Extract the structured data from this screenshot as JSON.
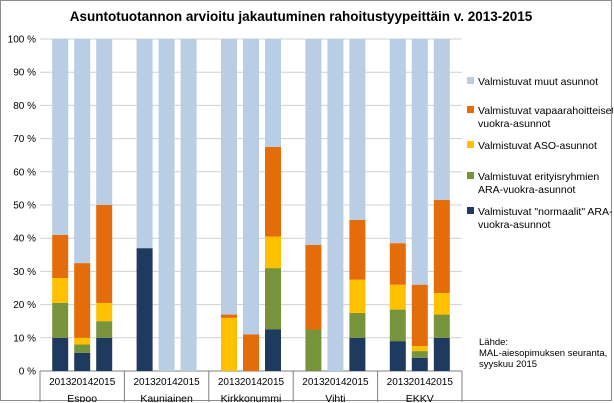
{
  "chart_data": {
    "type": "bar",
    "stacked": true,
    "title": "Asuntotuotannon arvioitu jakautuminen rahoitustyypeittäin  v. 2013-2015",
    "ylim": [
      0,
      100
    ],
    "yticks": [
      "0 %",
      "10 %",
      "20 %",
      "30 %",
      "40 %",
      "50 %",
      "60 %",
      "70 %",
      "80 %",
      "90 %",
      "100 %"
    ],
    "grid": true,
    "legend_position": "right",
    "groups": [
      {
        "name": "Espoo",
        "years": [
          "2013",
          "2014",
          "2015"
        ]
      },
      {
        "name": "Kauniainen",
        "years": [
          "2013",
          "2014",
          "2015"
        ]
      },
      {
        "name": "Kirkkonummi",
        "years": [
          "2013",
          "2014",
          "2015"
        ]
      },
      {
        "name": "Vihti",
        "years": [
          "2013",
          "2014",
          "2015"
        ]
      },
      {
        "name": "EKKV",
        "years": [
          "2013",
          "2014",
          "2015"
        ]
      }
    ],
    "series": [
      {
        "name": "Valmistuvat \"normaalit\" ARA-vuokra-asunnot",
        "label_lines": [
          "Valmistuvat \"normaalit\" ARA-",
          "vuokra-asunnot"
        ],
        "color": "#1f3a5f",
        "values": [
          10,
          5.5,
          10,
          37,
          0,
          0,
          0,
          0,
          12.5,
          0,
          0,
          10,
          9,
          4,
          10
        ]
      },
      {
        "name": "Valmistuvat erityisryhmien ARA-vuokra-asunnot",
        "label_lines": [
          "Valmistuvat erityisryhmien",
          "ARA-vuokra-asunnot"
        ],
        "color": "#77933c",
        "values": [
          10.5,
          2.5,
          5,
          0,
          0,
          0,
          0,
          0,
          18.5,
          12.5,
          0,
          7.5,
          9.5,
          2,
          7
        ]
      },
      {
        "name": "Valmistuvat ASO-asunnot",
        "label_lines": [
          "Valmistuvat ASO-asunnot"
        ],
        "color": "#ffc000",
        "values": [
          7.5,
          2,
          5.5,
          0,
          0,
          0,
          16,
          0,
          9.5,
          0,
          0,
          10,
          7.5,
          1.5,
          6.5
        ]
      },
      {
        "name": "Valmistuvat vapaarahoitteiset vuokra-asunnot",
        "label_lines": [
          "Valmistuvat vapaarahoitteiset",
          "vuokra-asunnot"
        ],
        "color": "#e46c0a",
        "values": [
          13,
          22.5,
          29.5,
          0,
          0,
          0,
          1,
          11,
          27,
          25.5,
          0,
          18,
          12.5,
          18.5,
          28
        ]
      },
      {
        "name": "Valmistuvat muut asunnot",
        "label_lines": [
          "Valmistuvat muut asunnot"
        ],
        "color": "#b9cde5",
        "values": [
          59,
          67.5,
          50,
          63,
          100,
          100,
          83,
          89,
          32.5,
          62,
          100,
          54.5,
          61.5,
          74,
          48.5
        ]
      }
    ],
    "annotation_lines": [
      "Lähde:",
      "MAL-aiesopimuksen seuranta,",
      "syyskuu 2015"
    ]
  }
}
